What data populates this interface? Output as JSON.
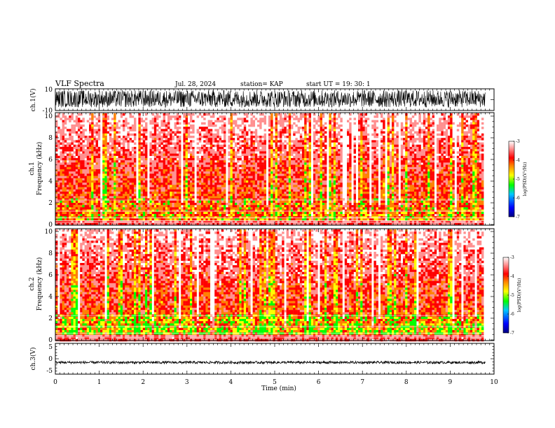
{
  "header": {
    "title": "VLF Spectra",
    "date": "Jul. 28, 2024",
    "station": "station= KAP",
    "start": "start  UT  =   19: 30: 1"
  },
  "colors": {
    "spectrogram_ramp": [
      "#000080",
      "#0000ff",
      "#00c8ff",
      "#00ff00",
      "#ffff00",
      "#ff8000",
      "#ff0000",
      "#ff9090",
      "#ffffff"
    ],
    "trace": "#000000"
  },
  "chart_data": [
    {
      "type": "line",
      "name": "ch1-waveform",
      "ylabel": "ch.1(V)",
      "ylim": [
        -10,
        10
      ],
      "ytick_labels": [
        "10",
        "-10"
      ],
      "xlim": [
        0,
        10
      ],
      "note_values": "dense noise trace spanning roughly -8 to 9 V over 0-9.8 min",
      "x_end": 9.8
    },
    {
      "type": "heatmap",
      "name": "ch1-spectrogram",
      "ylabel": "ch.1\nFrequency (kHz)",
      "ylabel_lines": [
        "ch.1",
        "Frequency (kHz)"
      ],
      "ylim": [
        0,
        10
      ],
      "ytick_labels": [
        "0",
        "2",
        "4",
        "6",
        "8",
        "10"
      ],
      "xlim": [
        0,
        10
      ],
      "x_end": 9.8,
      "colorbar": {
        "range": [
          -7,
          -3
        ],
        "tick_labels": [
          "-3",
          "-4",
          "-5",
          "-6",
          "-7"
        ],
        "label": "log(PSD)(V²/Hz)"
      }
    },
    {
      "type": "heatmap",
      "name": "ch2-spectrogram",
      "ylabel": "ch.2\nFrequency (kHz)",
      "ylabel_lines": [
        "ch.2",
        "Frequency (kHz)"
      ],
      "ylim": [
        0,
        10
      ],
      "ytick_labels": [
        "0",
        "2",
        "4",
        "6",
        "8",
        "10"
      ],
      "xlim": [
        0,
        10
      ],
      "x_end": 9.8,
      "colorbar": {
        "range": [
          -7,
          -3
        ],
        "tick_labels": [
          "-3",
          "-4",
          "-5",
          "-6",
          "-7"
        ],
        "label": "log(PSD)(V²/Hz)"
      }
    },
    {
      "type": "line",
      "name": "ch3-waveform",
      "ylabel": "ch.3(V)",
      "ylim": [
        -5,
        5
      ],
      "ytick_labels": [
        "5",
        "0",
        "-5"
      ],
      "xlim": [
        0,
        10
      ],
      "x_end": 9.8,
      "approx_level": -1.2,
      "approx_range": [
        -1.6,
        -0.8
      ]
    }
  ],
  "xaxis": {
    "label": "Time (min)",
    "tick_labels": [
      "0",
      "1",
      "2",
      "3",
      "4",
      "5",
      "6",
      "7",
      "8",
      "9",
      "10"
    ]
  }
}
